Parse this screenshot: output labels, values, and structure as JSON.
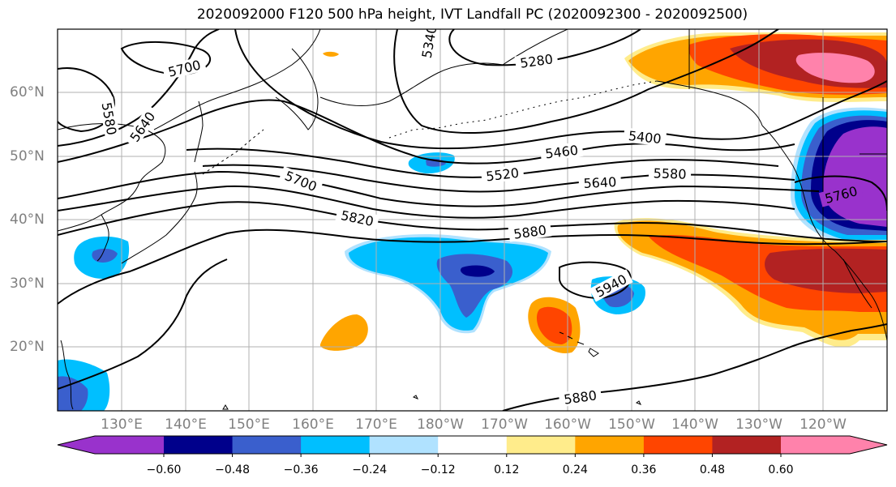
{
  "title": "2020092000 F120 500 hPa height, IVT Landfall PC (2020092300 - 2020092500)",
  "lon_ticks": [
    "130°E",
    "140°E",
    "150°E",
    "160°E",
    "170°E",
    "180°W",
    "170°W",
    "160°W",
    "150°W",
    "140°W",
    "130°W",
    "120°W"
  ],
  "lat_ticks": [
    "60°N",
    "50°N",
    "40°N",
    "30°N",
    "20°N"
  ],
  "contour_labels": [
    "5700",
    "5580",
    "5640",
    "5340",
    "5280",
    "5400",
    "5460",
    "5520",
    "5580",
    "5640",
    "5700",
    "5820",
    "5880",
    "5760",
    "5940",
    "5880"
  ],
  "colorbar": {
    "levels": [
      "−0.60",
      "−0.48",
      "−0.36",
      "−0.24",
      "−0.12",
      "0.12",
      "0.24",
      "0.36",
      "0.48",
      "0.60"
    ],
    "colors": [
      "#9932cc",
      "#00008b",
      "#3a5fcd",
      "#00bfff",
      "#b0e2ff",
      "#ffffff",
      "#ffec8b",
      "#ffa500",
      "#ff4500",
      "#b22222",
      "#ff82ab"
    ]
  }
}
